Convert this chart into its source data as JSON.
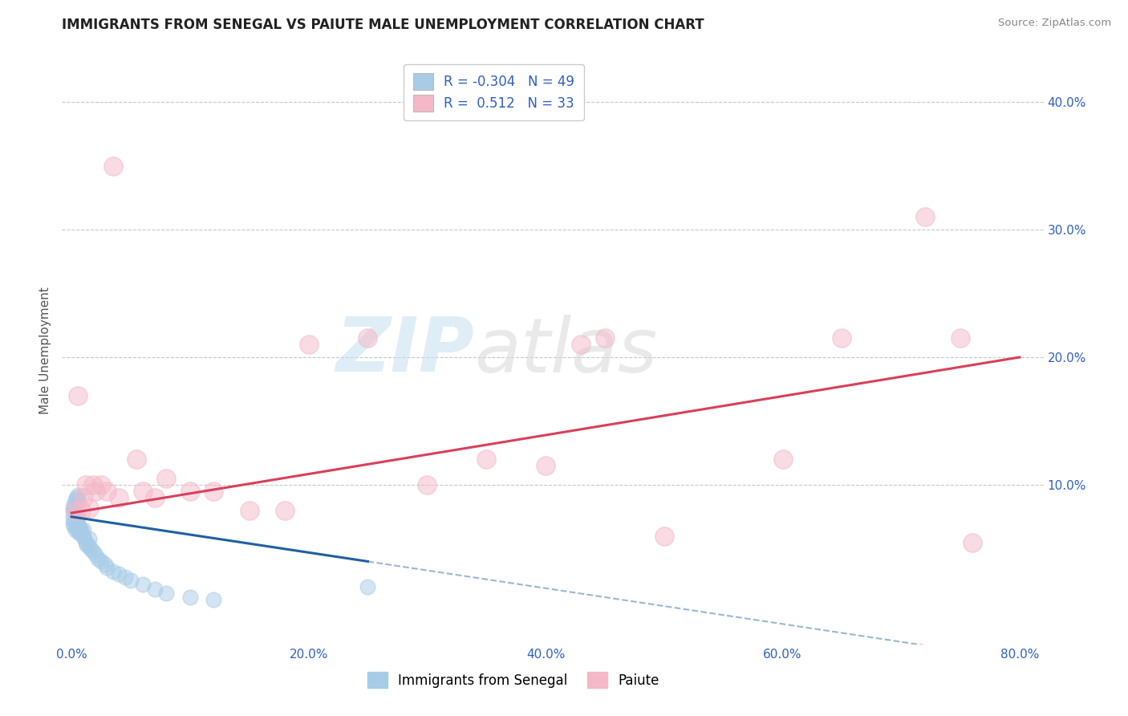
{
  "title": "IMMIGRANTS FROM SENEGAL VS PAIUTE MALE UNEMPLOYMENT CORRELATION CHART",
  "source": "Source: ZipAtlas.com",
  "ylabel": "Male Unemployment",
  "xlim": [
    -0.008,
    0.82
  ],
  "ylim": [
    -0.025,
    0.435
  ],
  "xticks": [
    0.0,
    0.2,
    0.4,
    0.6,
    0.8
  ],
  "xtick_labels": [
    "0.0%",
    "20.0%",
    "40.0%",
    "60.0%",
    "80.0%"
  ],
  "ytick_vals": [
    0.0,
    0.1,
    0.2,
    0.3,
    0.4
  ],
  "ytick_labels": [
    "",
    "10.0%",
    "20.0%",
    "30.0%",
    "40.0%"
  ],
  "grid_yticks": [
    0.1,
    0.2,
    0.3,
    0.4
  ],
  "r1": "-0.304",
  "n1": "49",
  "r2": "0.512",
  "n2": "33",
  "blue_color": "#a8cce8",
  "pink_color": "#f4b8c8",
  "blue_line_color": "#2060a0",
  "pink_line_color": "#d8405a",
  "label_color": "#3060c0",
  "watermark_zip": "ZIP",
  "watermark_atlas": "atlas",
  "blue_x": [
    0.001,
    0.001,
    0.001,
    0.002,
    0.002,
    0.002,
    0.003,
    0.003,
    0.004,
    0.004,
    0.005,
    0.005,
    0.005,
    0.006,
    0.006,
    0.007,
    0.007,
    0.008,
    0.009,
    0.01,
    0.01,
    0.011,
    0.012,
    0.013,
    0.015,
    0.015,
    0.016,
    0.018,
    0.02,
    0.022,
    0.025,
    0.028,
    0.03,
    0.035,
    0.04,
    0.045,
    0.05,
    0.06,
    0.07,
    0.08,
    0.1,
    0.12,
    0.001,
    0.002,
    0.003,
    0.004,
    0.005,
    0.006,
    0.25
  ],
  "blue_y": [
    0.07,
    0.075,
    0.08,
    0.068,
    0.072,
    0.078,
    0.065,
    0.07,
    0.068,
    0.072,
    0.065,
    0.07,
    0.075,
    0.063,
    0.068,
    0.062,
    0.067,
    0.065,
    0.063,
    0.06,
    0.065,
    0.058,
    0.055,
    0.053,
    0.058,
    0.052,
    0.05,
    0.048,
    0.045,
    0.042,
    0.04,
    0.038,
    0.035,
    0.032,
    0.03,
    0.028,
    0.025,
    0.022,
    0.018,
    0.015,
    0.012,
    0.01,
    0.082,
    0.085,
    0.088,
    0.09,
    0.092,
    0.088,
    0.02
  ],
  "pink_x": [
    0.003,
    0.005,
    0.008,
    0.01,
    0.012,
    0.015,
    0.018,
    0.02,
    0.025,
    0.03,
    0.035,
    0.04,
    0.055,
    0.06,
    0.07,
    0.08,
    0.1,
    0.12,
    0.15,
    0.18,
    0.2,
    0.25,
    0.3,
    0.35,
    0.4,
    0.43,
    0.45,
    0.5,
    0.6,
    0.65,
    0.72,
    0.75,
    0.76
  ],
  "pink_y": [
    0.08,
    0.17,
    0.08,
    0.09,
    0.1,
    0.082,
    0.1,
    0.095,
    0.1,
    0.095,
    0.35,
    0.09,
    0.12,
    0.095,
    0.09,
    0.105,
    0.095,
    0.095,
    0.08,
    0.08,
    0.21,
    0.215,
    0.1,
    0.12,
    0.115,
    0.21,
    0.215,
    0.06,
    0.12,
    0.215,
    0.31,
    0.215,
    0.055
  ],
  "pink_line_x0": 0.0,
  "pink_line_y0": 0.078,
  "pink_line_x1": 0.8,
  "pink_line_y1": 0.2,
  "blue_line_x0": 0.0,
  "blue_line_y0": 0.075,
  "blue_line_x1": 0.25,
  "blue_line_y1": 0.04
}
